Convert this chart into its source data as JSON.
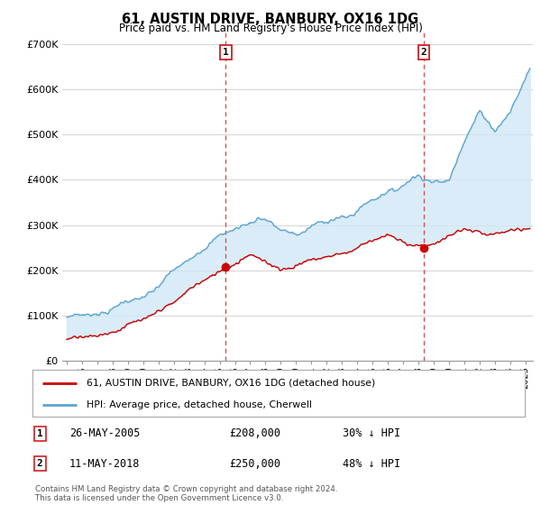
{
  "title": "61, AUSTIN DRIVE, BANBURY, OX16 1DG",
  "subtitle": "Price paid vs. HM Land Registry's House Price Index (HPI)",
  "ylabel_ticks": [
    "£0",
    "£100K",
    "£200K",
    "£300K",
    "£400K",
    "£500K",
    "£600K",
    "£700K"
  ],
  "ytick_values": [
    0,
    100000,
    200000,
    300000,
    400000,
    500000,
    600000,
    700000
  ],
  "ylim": [
    0,
    730000
  ],
  "xlim_start": 1994.7,
  "xlim_end": 2025.5,
  "hpi_color": "#5ba3d0",
  "hpi_fill_color": "#d0e8f5",
  "price_color": "#cc0000",
  "dashed_color": "#dd4444",
  "marker1_year": 2005.39,
  "marker2_year": 2018.36,
  "marker1_price": 208000,
  "marker2_price": 250000,
  "legend_label1": "61, AUSTIN DRIVE, BANBURY, OX16 1DG (detached house)",
  "legend_label2": "HPI: Average price, detached house, Cherwell",
  "annotation1_num": "1",
  "annotation2_num": "2",
  "annot1_date": "26-MAY-2005",
  "annot1_price": "£208,000",
  "annot1_hpi": "30% ↓ HPI",
  "annot2_date": "11-MAY-2018",
  "annot2_price": "£250,000",
  "annot2_hpi": "48% ↓ HPI",
  "footer": "Contains HM Land Registry data © Crown copyright and database right 2024.\nThis data is licensed under the Open Government Licence v3.0.",
  "background_color": "#ffffff",
  "grid_color": "#cccccc"
}
